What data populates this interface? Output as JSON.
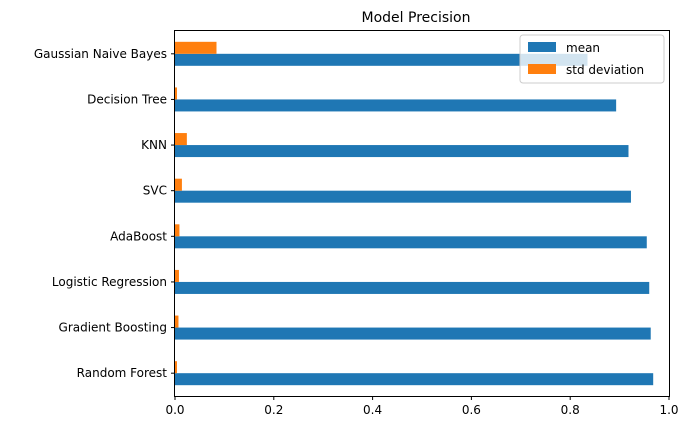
{
  "chart_data": {
    "type": "bar",
    "orientation": "horizontal",
    "title": "Model Precision",
    "xlabel": "",
    "ylabel": "",
    "xlim": [
      0,
      1.0
    ],
    "xticks": [
      0,
      0.2,
      0.4,
      0.6,
      0.8,
      1.0
    ],
    "xtick_labels": [
      "0.0",
      "0.2",
      "0.4",
      "0.6",
      "0.8",
      "1.0"
    ],
    "categories": [
      "Random Forest",
      "Gradient Boosting",
      "Logistic Regression",
      "AdaBoost",
      "SVC",
      "KNN",
      "Decision Tree",
      "Gaussian Naive Bayes"
    ],
    "series": [
      {
        "name": "mean",
        "color": "#1f77b4",
        "values": [
          0.968,
          0.963,
          0.96,
          0.955,
          0.923,
          0.918,
          0.893,
          0.835
        ]
      },
      {
        "name": "std deviation",
        "color": "#ff7f0e",
        "values": [
          0.004,
          0.007,
          0.008,
          0.009,
          0.014,
          0.024,
          0.004,
          0.084
        ]
      }
    ],
    "legend_position": "top-right",
    "grid": false
  }
}
